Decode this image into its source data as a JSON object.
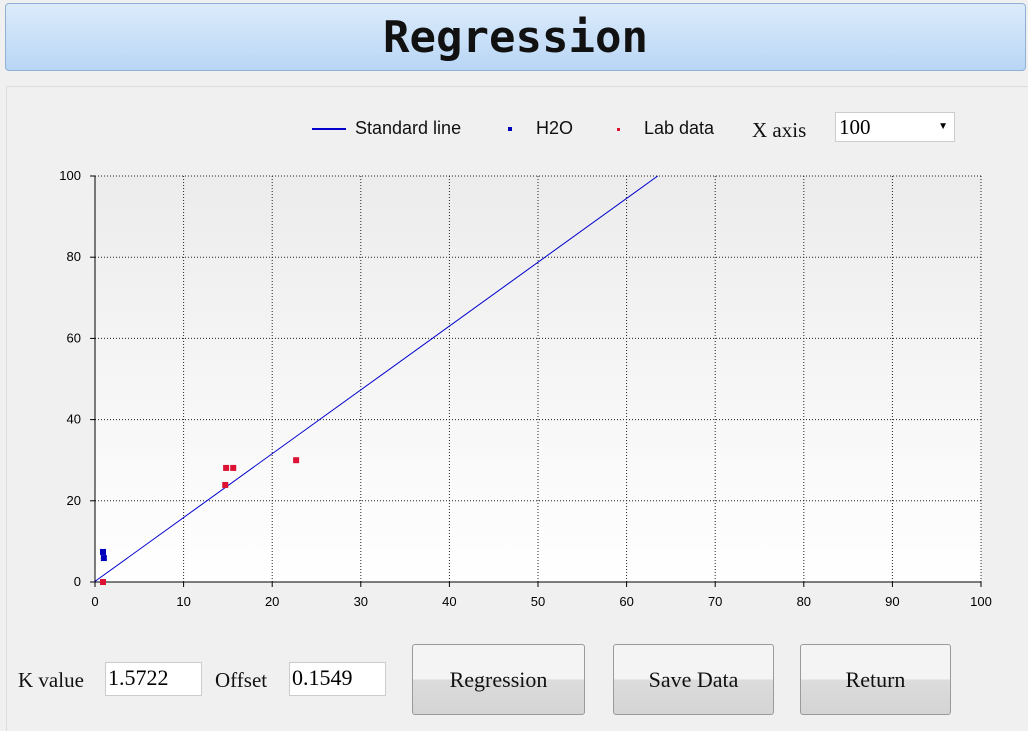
{
  "title": "Regression",
  "legend": {
    "standard_line": "Standard line",
    "h2o": "H2O",
    "lab_data": "Lab data"
  },
  "x_axis": {
    "label": "X axis",
    "value": "100"
  },
  "k": {
    "label": "K value",
    "value": "1.5722"
  },
  "offset": {
    "label": "Offset",
    "value": "0.1549"
  },
  "buttons": {
    "regression": "Regression",
    "save": "Save Data",
    "return": "Return"
  },
  "colors": {
    "line": "#0000cc",
    "h2o": "#0000bb",
    "lab": "#dd1133"
  },
  "chart_data": {
    "type": "scatter",
    "xlim": [
      0,
      100
    ],
    "ylim": [
      0,
      100
    ],
    "grid": true,
    "legend": "top",
    "xticks": [
      0,
      10,
      20,
      30,
      40,
      50,
      60,
      70,
      80,
      90,
      100
    ],
    "yticks": [
      0,
      20,
      40,
      60,
      80,
      100
    ],
    "line": {
      "name": "Standard line",
      "slope": 1.5722,
      "intercept": 0.1549
    },
    "series": [
      {
        "name": "H2O",
        "points": [
          [
            0.9,
            7.4
          ],
          [
            1.0,
            5.9
          ]
        ]
      },
      {
        "name": "Lab data",
        "points": [
          [
            0.9,
            0
          ],
          [
            14.8,
            28.1
          ],
          [
            15.6,
            28.1
          ],
          [
            14.7,
            23.9
          ],
          [
            22.7,
            30.0
          ]
        ]
      }
    ]
  }
}
